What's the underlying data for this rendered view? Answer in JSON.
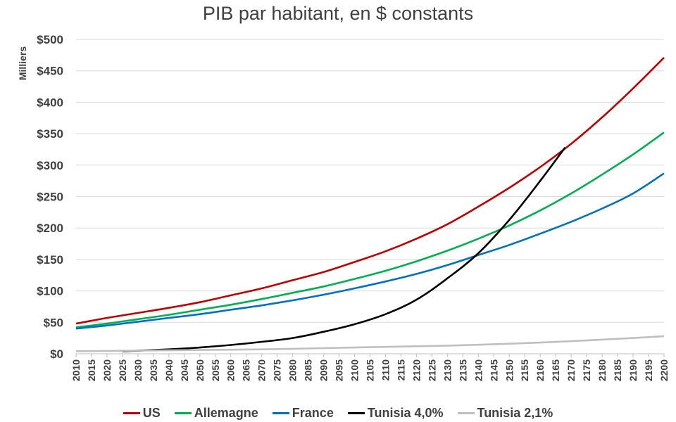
{
  "chart_data": {
    "type": "line",
    "title": "PIB par habitant, en $ constants",
    "ylabel": "Milliers",
    "xlabel": "",
    "xlim": [
      2010,
      2200
    ],
    "ylim": [
      0,
      500
    ],
    "grid": true,
    "legend_position": "bottom",
    "x_ticks": [
      "2010",
      "2015",
      "2020",
      "2025",
      "2030",
      "2035",
      "2040",
      "2045",
      "2050",
      "2055",
      "2060",
      "2065",
      "2070",
      "2075",
      "2080",
      "2085",
      "2090",
      "2095",
      "2100",
      "2105",
      "2110",
      "2115",
      "2120",
      "2125",
      "2130",
      "2135",
      "2140",
      "2145",
      "2150",
      "2155",
      "2160",
      "2165",
      "2170",
      "2175",
      "2180",
      "2185",
      "2190",
      "2195",
      "2200"
    ],
    "y_ticks": [
      "$0",
      "$50",
      "$100",
      "$150",
      "$200",
      "$250",
      "$300",
      "$350",
      "$400",
      "$450",
      "$500"
    ],
    "series": [
      {
        "name": "US",
        "color": "#c00000",
        "x": [
          2010,
          2020,
          2030,
          2040,
          2050,
          2060,
          2070,
          2080,
          2090,
          2100,
          2110,
          2120,
          2130,
          2140,
          2150,
          2160,
          2170,
          2180,
          2190,
          2200
        ],
        "y": [
          48,
          57,
          65,
          73,
          82,
          93,
          104,
          117,
          130,
          146,
          163,
          183,
          206,
          234,
          264,
          297,
          334,
          376,
          422,
          471
        ]
      },
      {
        "name": "Allemagne",
        "color": "#00b050",
        "x": [
          2010,
          2020,
          2030,
          2040,
          2050,
          2060,
          2070,
          2080,
          2090,
          2100,
          2110,
          2120,
          2130,
          2140,
          2150,
          2160,
          2170,
          2180,
          2190,
          2200
        ],
        "y": [
          42,
          48,
          55,
          62,
          70,
          78,
          87,
          97,
          107,
          119,
          132,
          147,
          164,
          183,
          204,
          228,
          255,
          285,
          317,
          352
        ]
      },
      {
        "name": "France",
        "color": "#0070c0",
        "x": [
          2010,
          2020,
          2030,
          2040,
          2050,
          2060,
          2070,
          2080,
          2090,
          2100,
          2110,
          2120,
          2130,
          2140,
          2150,
          2160,
          2170,
          2180,
          2190,
          2200
        ],
        "y": [
          40,
          45,
          51,
          57,
          63,
          70,
          77,
          85,
          94,
          104,
          115,
          127,
          141,
          157,
          173,
          191,
          210,
          231,
          255,
          287
        ]
      },
      {
        "name": "Tunisia 4,0%",
        "color": "#000000",
        "x": [
          2025,
          2040,
          2050,
          2060,
          2070,
          2080,
          2090,
          2100,
          2110,
          2120,
          2130,
          2140,
          2150,
          2160,
          2168
        ],
        "y": [
          4,
          7,
          10,
          14,
          19,
          25,
          35,
          47,
          63,
          86,
          120,
          160,
          213,
          275,
          328
        ]
      },
      {
        "name": "Tunisia 2,1%",
        "color": "#bfbfbf",
        "x": [
          2010,
          2030,
          2050,
          2070,
          2090,
          2110,
          2130,
          2150,
          2170,
          2190,
          2200
        ],
        "y": [
          4,
          5,
          6,
          7,
          9,
          11,
          13,
          16,
          20,
          25,
          28
        ]
      }
    ]
  }
}
